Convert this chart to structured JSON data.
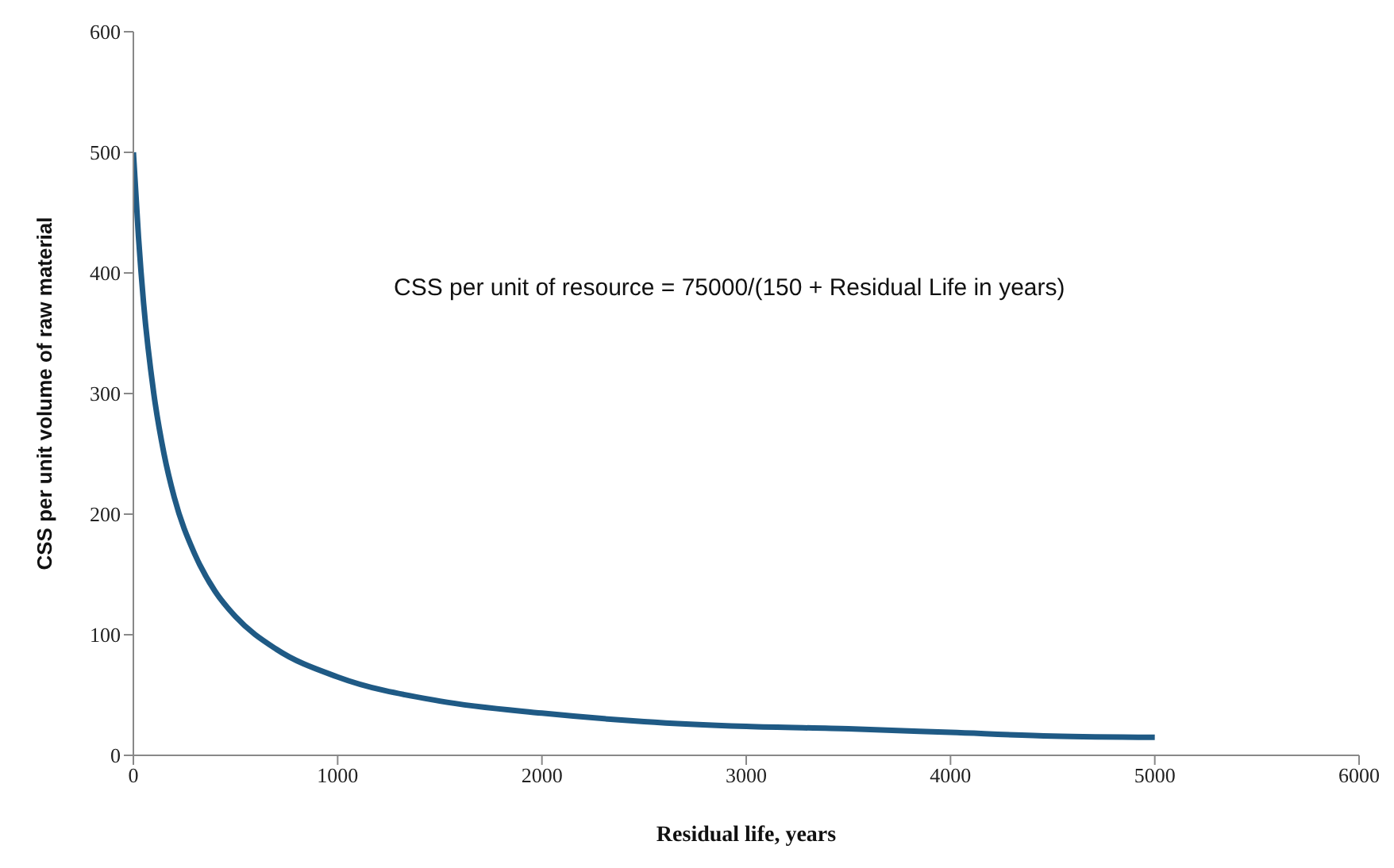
{
  "chart_data": {
    "type": "line",
    "xlabel": "Residual life, years",
    "ylabel": "CSS per unit volume of raw material",
    "annotations": [
      "CSS per unit of resource = 75000/(150 + Residual Life in years)"
    ],
    "x": [
      0,
      25,
      50,
      100,
      150,
      200,
      300,
      400,
      500,
      700,
      1000,
      1500,
      2000,
      2500,
      3000,
      3500,
      4000,
      4500,
      5000
    ],
    "series": [
      {
        "color": "#1f5a85",
        "values": [
          500,
          430,
          375,
          300,
          250,
          214,
          167,
          136,
          115,
          88,
          65,
          45,
          35,
          28,
          24,
          22,
          19,
          16,
          15
        ]
      }
    ],
    "xlim": [
      0,
      6000
    ],
    "xticks": [
      0,
      1000,
      2000,
      3000,
      4000,
      5000,
      6000
    ],
    "ylim": [
      0,
      600
    ],
    "yticks": [
      0,
      100,
      200,
      300,
      400,
      500,
      600
    ],
    "grid": false,
    "legend": false,
    "marker": "none",
    "line_style": "solid"
  }
}
